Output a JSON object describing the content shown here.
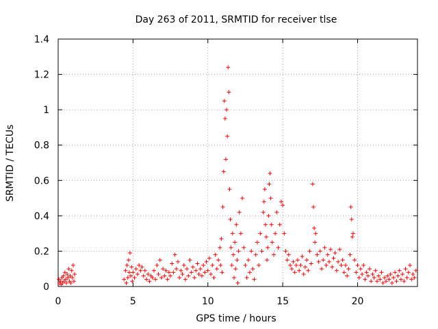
{
  "chart_data": {
    "type": "scatter",
    "title": "Day 263 of 2011, SRMTID for receiver tlse",
    "xlabel": "GPS time / hours",
    "ylabel": "SRMTID / TECUs",
    "xlim": [
      0,
      24
    ],
    "ylim": [
      0,
      1.4
    ],
    "xticks": [
      0,
      5,
      10,
      15,
      20
    ],
    "yticks": [
      0,
      0.2,
      0.4,
      0.6,
      0.8,
      1,
      1.2,
      1.4
    ],
    "xtick_labels": [
      "0",
      "5",
      "10",
      "15",
      "20"
    ],
    "ytick_labels": [
      "0",
      "0.2",
      "0.4",
      "0.6",
      "0.8",
      "1",
      "1.2",
      "1.4"
    ],
    "grid": true,
    "marker": "+",
    "color": "#ff0000",
    "series": [
      {
        "name": "SRMTID",
        "points": [
          [
            0.05,
            0.04
          ],
          [
            0.1,
            0.02
          ],
          [
            0.15,
            0.03
          ],
          [
            0.2,
            0.01
          ],
          [
            0.25,
            0.05
          ],
          [
            0.3,
            0.02
          ],
          [
            0.35,
            0.06
          ],
          [
            0.4,
            0.03
          ],
          [
            0.45,
            0.08
          ],
          [
            0.5,
            0.04
          ],
          [
            0.55,
            0.02
          ],
          [
            0.6,
            0.07
          ],
          [
            0.65,
            0.05
          ],
          [
            0.7,
            0.1
          ],
          [
            0.75,
            0.03
          ],
          [
            0.8,
            0.06
          ],
          [
            0.85,
            0.02
          ],
          [
            0.9,
            0.09
          ],
          [
            0.95,
            0.05
          ],
          [
            1.0,
            0.12
          ],
          [
            1.05,
            0.03
          ],
          [
            1.1,
            0.07
          ],
          [
            4.4,
            0.04
          ],
          [
            4.5,
            0.09
          ],
          [
            4.55,
            0.02
          ],
          [
            4.6,
            0.12
          ],
          [
            4.65,
            0.05
          ],
          [
            4.7,
            0.15
          ],
          [
            4.75,
            0.08
          ],
          [
            4.8,
            0.19
          ],
          [
            4.85,
            0.06
          ],
          [
            4.9,
            0.11
          ],
          [
            4.95,
            0.03
          ],
          [
            5.0,
            0.08
          ],
          [
            5.1,
            0.05
          ],
          [
            5.2,
            0.1
          ],
          [
            5.3,
            0.07
          ],
          [
            5.4,
            0.12
          ],
          [
            5.5,
            0.09
          ],
          [
            5.6,
            0.11
          ],
          [
            5.7,
            0.06
          ],
          [
            5.8,
            0.09
          ],
          [
            5.9,
            0.04
          ],
          [
            6.0,
            0.07
          ],
          [
            6.1,
            0.03
          ],
          [
            6.2,
            0.06
          ],
          [
            6.3,
            0.05
          ],
          [
            6.4,
            0.09
          ],
          [
            6.5,
            0.04
          ],
          [
            6.6,
            0.12
          ],
          [
            6.7,
            0.07
          ],
          [
            6.8,
            0.15
          ],
          [
            6.9,
            0.05
          ],
          [
            7.0,
            0.1
          ],
          [
            7.1,
            0.06
          ],
          [
            7.2,
            0.09
          ],
          [
            7.3,
            0.04
          ],
          [
            7.4,
            0.08
          ],
          [
            7.5,
            0.06
          ],
          [
            7.6,
            0.13
          ],
          [
            7.7,
            0.08
          ],
          [
            7.8,
            0.18
          ],
          [
            7.9,
            0.1
          ],
          [
            8.0,
            0.14
          ],
          [
            8.1,
            0.05
          ],
          [
            8.2,
            0.09
          ],
          [
            8.3,
            0.07
          ],
          [
            8.4,
            0.12
          ],
          [
            8.5,
            0.04
          ],
          [
            8.6,
            0.1
          ],
          [
            8.7,
            0.06
          ],
          [
            8.8,
            0.15
          ],
          [
            8.9,
            0.08
          ],
          [
            9.0,
            0.11
          ],
          [
            9.1,
            0.05
          ],
          [
            9.2,
            0.09
          ],
          [
            9.3,
            0.13
          ],
          [
            9.4,
            0.07
          ],
          [
            9.5,
            0.1
          ],
          [
            9.6,
            0.06
          ],
          [
            9.7,
            0.12
          ],
          [
            9.8,
            0.08
          ],
          [
            9.9,
            0.14
          ],
          [
            10.0,
            0.09
          ],
          [
            10.1,
            0.16
          ],
          [
            10.2,
            0.07
          ],
          [
            10.3,
            0.12
          ],
          [
            10.4,
            0.05
          ],
          [
            10.5,
            0.18
          ],
          [
            10.6,
            0.1
          ],
          [
            10.7,
            0.15
          ],
          [
            10.8,
            0.22
          ],
          [
            10.85,
            0.12
          ],
          [
            10.9,
            0.27
          ],
          [
            10.95,
            0.08
          ],
          [
            11.0,
            0.45
          ],
          [
            11.05,
            0.65
          ],
          [
            11.1,
            1.05
          ],
          [
            11.15,
            0.95
          ],
          [
            11.2,
            0.72
          ],
          [
            11.25,
            1.0
          ],
          [
            11.3,
            0.85
          ],
          [
            11.35,
            1.24
          ],
          [
            11.4,
            1.1
          ],
          [
            11.45,
            0.55
          ],
          [
            11.5,
            0.38
          ],
          [
            11.55,
            0.22
          ],
          [
            11.6,
            0.12
          ],
          [
            11.65,
            0.3
          ],
          [
            11.7,
            0.18
          ],
          [
            11.75,
            0.05
          ],
          [
            11.8,
            0.25
          ],
          [
            11.85,
            0.1
          ],
          [
            11.9,
            0.35
          ],
          [
            11.95,
            0.15
          ],
          [
            12.0,
            0.02
          ],
          [
            12.05,
            0.2
          ],
          [
            12.1,
            0.42
          ],
          [
            12.2,
            0.3
          ],
          [
            12.3,
            0.5
          ],
          [
            12.4,
            0.22
          ],
          [
            12.5,
            0.12
          ],
          [
            12.6,
            0.05
          ],
          [
            12.7,
            0.15
          ],
          [
            12.8,
            0.08
          ],
          [
            12.9,
            0.2
          ],
          [
            13.0,
            0.1
          ],
          [
            13.1,
            0.04
          ],
          [
            13.2,
            0.18
          ],
          [
            13.3,
            0.25
          ],
          [
            13.4,
            0.12
          ],
          [
            13.5,
            0.3
          ],
          [
            13.6,
            0.2
          ],
          [
            13.7,
            0.42
          ],
          [
            13.75,
            0.48
          ],
          [
            13.8,
            0.55
          ],
          [
            13.85,
            0.35
          ],
          [
            13.9,
            0.28
          ],
          [
            13.95,
            0.15
          ],
          [
            14.0,
            0.22
          ],
          [
            14.05,
            0.4
          ],
          [
            14.1,
            0.58
          ],
          [
            14.15,
            0.64
          ],
          [
            14.2,
            0.5
          ],
          [
            14.25,
            0.35
          ],
          [
            14.3,
            0.25
          ],
          [
            14.4,
            0.18
          ],
          [
            14.5,
            0.3
          ],
          [
            14.6,
            0.42
          ],
          [
            14.7,
            0.22
          ],
          [
            14.8,
            0.35
          ],
          [
            14.9,
            0.48
          ],
          [
            15.0,
            0.46
          ],
          [
            15.1,
            0.3
          ],
          [
            15.2,
            0.2
          ],
          [
            15.3,
            0.15
          ],
          [
            15.4,
            0.18
          ],
          [
            15.5,
            0.12
          ],
          [
            15.6,
            0.1
          ],
          [
            15.7,
            0.14
          ],
          [
            15.8,
            0.08
          ],
          [
            15.9,
            0.12
          ],
          [
            16.0,
            0.15
          ],
          [
            16.1,
            0.09
          ],
          [
            16.2,
            0.12
          ],
          [
            16.3,
            0.17
          ],
          [
            16.4,
            0.07
          ],
          [
            16.5,
            0.11
          ],
          [
            16.6,
            0.15
          ],
          [
            16.7,
            0.09
          ],
          [
            16.8,
            0.2
          ],
          [
            16.9,
            0.13
          ],
          [
            17.0,
            0.58
          ],
          [
            17.05,
            0.45
          ],
          [
            17.1,
            0.33
          ],
          [
            17.15,
            0.25
          ],
          [
            17.2,
            0.3
          ],
          [
            17.3,
            0.18
          ],
          [
            17.4,
            0.14
          ],
          [
            17.5,
            0.2
          ],
          [
            17.6,
            0.1
          ],
          [
            17.7,
            0.15
          ],
          [
            17.8,
            0.22
          ],
          [
            17.9,
            0.12
          ],
          [
            18.0,
            0.18
          ],
          [
            18.1,
            0.14
          ],
          [
            18.2,
            0.21
          ],
          [
            18.3,
            0.11
          ],
          [
            18.4,
            0.16
          ],
          [
            18.5,
            0.19
          ],
          [
            18.6,
            0.09
          ],
          [
            18.7,
            0.14
          ],
          [
            18.8,
            0.21
          ],
          [
            18.9,
            0.12
          ],
          [
            19.0,
            0.15
          ],
          [
            19.1,
            0.08
          ],
          [
            19.2,
            0.12
          ],
          [
            19.3,
            0.06
          ],
          [
            19.4,
            0.1
          ],
          [
            19.5,
            0.18
          ],
          [
            19.55,
            0.45
          ],
          [
            19.6,
            0.38
          ],
          [
            19.65,
            0.28
          ],
          [
            19.7,
            0.3
          ],
          [
            19.8,
            0.15
          ],
          [
            19.9,
            0.08
          ],
          [
            20.0,
            0.12
          ],
          [
            20.1,
            0.05
          ],
          [
            20.2,
            0.1
          ],
          [
            20.3,
            0.07
          ],
          [
            20.4,
            0.12
          ],
          [
            20.5,
            0.04
          ],
          [
            20.6,
            0.08
          ],
          [
            20.7,
            0.06
          ],
          [
            20.8,
            0.1
          ],
          [
            20.9,
            0.03
          ],
          [
            21.0,
            0.07
          ],
          [
            21.1,
            0.05
          ],
          [
            21.2,
            0.09
          ],
          [
            21.3,
            0.03
          ],
          [
            21.4,
            0.06
          ],
          [
            21.5,
            0.04
          ],
          [
            21.6,
            0.08
          ],
          [
            21.7,
            0.02
          ],
          [
            21.8,
            0.05
          ],
          [
            21.9,
            0.03
          ],
          [
            22.0,
            0.06
          ],
          [
            22.1,
            0.04
          ],
          [
            22.2,
            0.07
          ],
          [
            22.3,
            0.02
          ],
          [
            22.4,
            0.05
          ],
          [
            22.5,
            0.08
          ],
          [
            22.6,
            0.03
          ],
          [
            22.7,
            0.06
          ],
          [
            22.8,
            0.09
          ],
          [
            22.9,
            0.04
          ],
          [
            23.0,
            0.07
          ],
          [
            23.1,
            0.03
          ],
          [
            23.2,
            0.1
          ],
          [
            23.3,
            0.05
          ],
          [
            23.4,
            0.08
          ],
          [
            23.5,
            0.12
          ],
          [
            23.6,
            0.04
          ],
          [
            23.7,
            0.07
          ],
          [
            23.8,
            0.05
          ],
          [
            23.9,
            0.09
          ]
        ]
      }
    ]
  }
}
